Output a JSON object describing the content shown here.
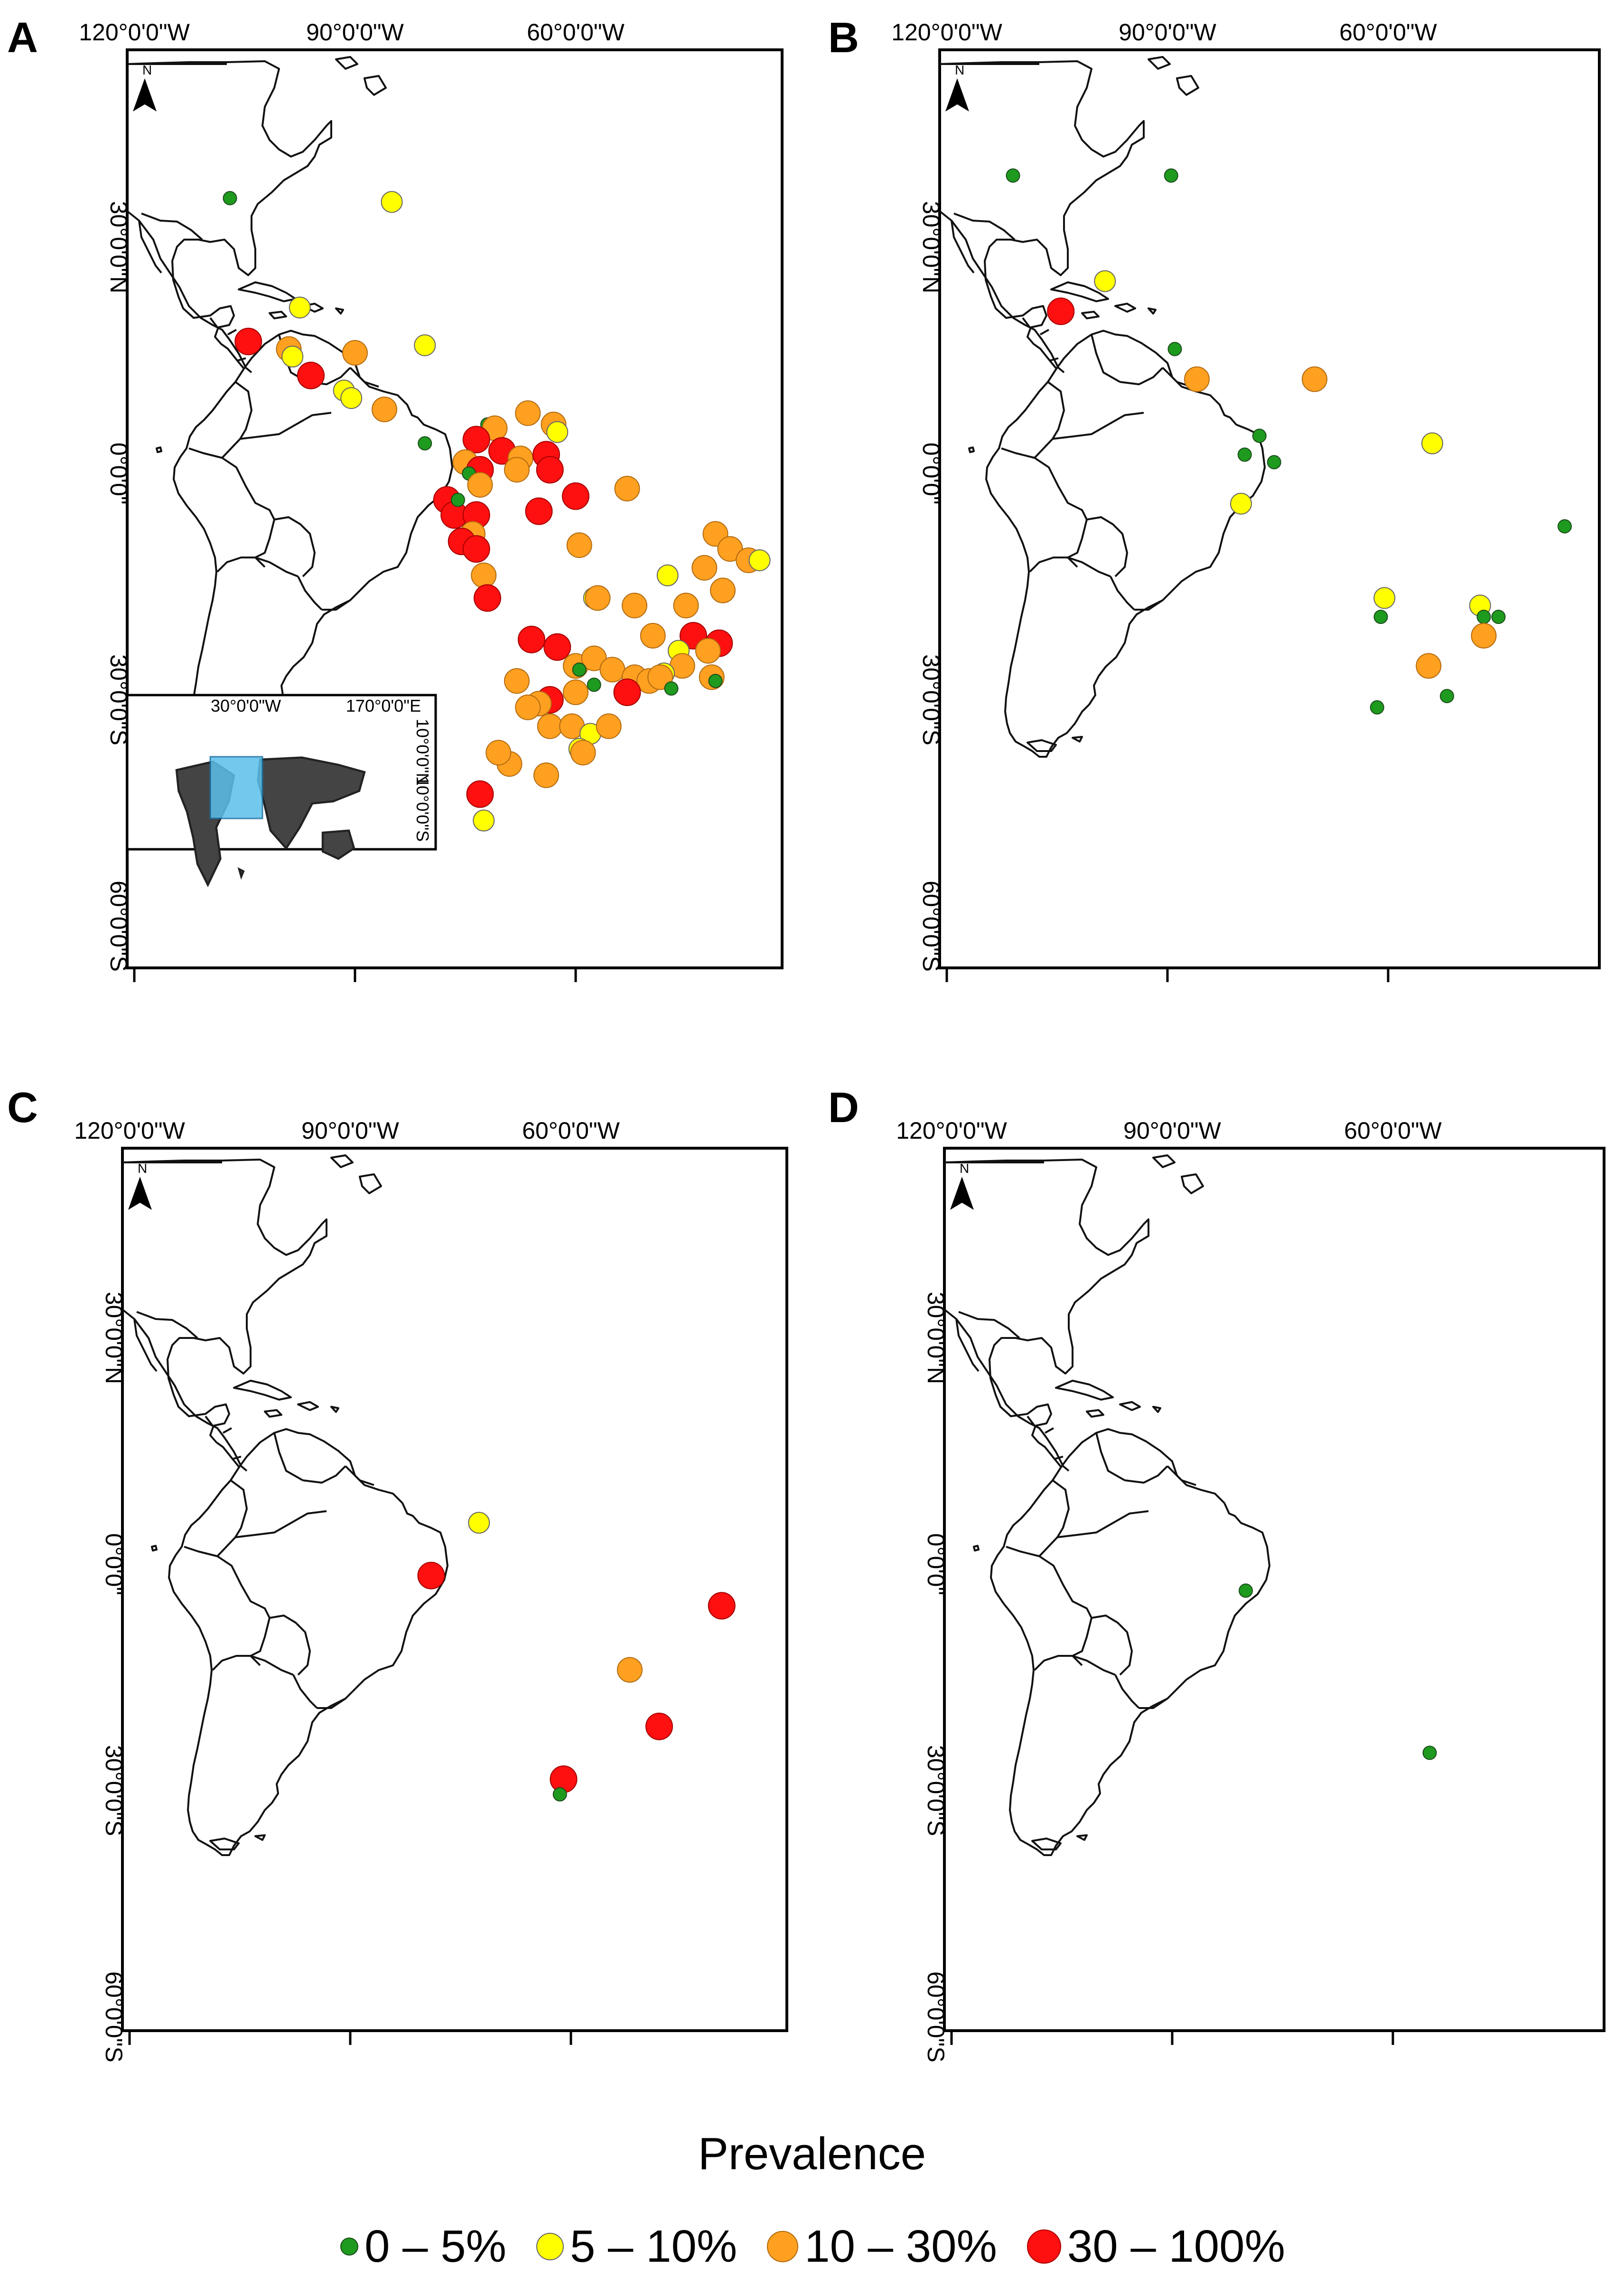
{
  "panels": [
    {
      "id": "A",
      "lon_labels": [
        "120°0'0\"W",
        "90°0'0\"W",
        "60°0'0\"W"
      ],
      "lat_labels": [
        "30°0'0\"N",
        "0°0'0\"",
        "30°0'0\"S",
        "60°0'0\"S"
      ],
      "north_label": "N",
      "inset": {
        "labels": [
          "30°0'0\"W",
          "170°0'0\"E",
          "10°0'0\"N",
          "10°0'0\"S"
        ]
      },
      "points": [
        {
          "lon": -107,
          "lat": 36.5,
          "cat": 0
        },
        {
          "lon": -85,
          "lat": 36,
          "cat": 1
        },
        {
          "lon": -97.5,
          "lat": 22,
          "cat": 1
        },
        {
          "lon": -80.5,
          "lat": 17,
          "cat": 1
        },
        {
          "lon": -104.5,
          "lat": 17.5,
          "cat": 3
        },
        {
          "lon": -99,
          "lat": 16.5,
          "cat": 2
        },
        {
          "lon": -98.5,
          "lat": 15.5,
          "cat": 1
        },
        {
          "lon": -96,
          "lat": 13,
          "cat": 3
        },
        {
          "lon": -90,
          "lat": 16,
          "cat": 2
        },
        {
          "lon": -91.5,
          "lat": 11,
          "cat": 1
        },
        {
          "lon": -90.5,
          "lat": 10,
          "cat": 1
        },
        {
          "lon": -86,
          "lat": 8.5,
          "cat": 2
        },
        {
          "lon": -80.5,
          "lat": 4,
          "cat": 0
        },
        {
          "lon": -72,
          "lat": 6.5,
          "cat": 0
        },
        {
          "lon": -71,
          "lat": 6,
          "cat": 2
        },
        {
          "lon": -66.5,
          "lat": 8,
          "cat": 2
        },
        {
          "lon": -63,
          "lat": 6.5,
          "cat": 2
        },
        {
          "lon": -62.5,
          "lat": 5.5,
          "cat": 1
        },
        {
          "lon": -73.5,
          "lat": 4.5,
          "cat": 3
        },
        {
          "lon": -70,
          "lat": 3,
          "cat": 3
        },
        {
          "lon": -67.5,
          "lat": 2,
          "cat": 2
        },
        {
          "lon": -64,
          "lat": 2.5,
          "cat": 3
        },
        {
          "lon": -75,
          "lat": 1.5,
          "cat": 2
        },
        {
          "lon": -73,
          "lat": 0.5,
          "cat": 3
        },
        {
          "lon": -74.5,
          "lat": 0,
          "cat": 0
        },
        {
          "lon": -68,
          "lat": 0.5,
          "cat": 2
        },
        {
          "lon": -63.5,
          "lat": 0.5,
          "cat": 3
        },
        {
          "lon": -73,
          "lat": -1.5,
          "cat": 2
        },
        {
          "lon": -77.5,
          "lat": -3.5,
          "cat": 3
        },
        {
          "lon": -76.5,
          "lat": -5.5,
          "cat": 3
        },
        {
          "lon": -76,
          "lat": -3.5,
          "cat": 0
        },
        {
          "lon": -73.5,
          "lat": -5.5,
          "cat": 3
        },
        {
          "lon": -74,
          "lat": -8,
          "cat": 2
        },
        {
          "lon": -75.5,
          "lat": -9,
          "cat": 3
        },
        {
          "lon": -73.5,
          "lat": -10,
          "cat": 3
        },
        {
          "lon": -72.5,
          "lat": -13.5,
          "cat": 2
        },
        {
          "lon": -72,
          "lat": -16.5,
          "cat": 3
        },
        {
          "lon": -65,
          "lat": -5,
          "cat": 3
        },
        {
          "lon": -60,
          "lat": -3,
          "cat": 3
        },
        {
          "lon": -53,
          "lat": -2,
          "cat": 2
        },
        {
          "lon": -59.5,
          "lat": -9.5,
          "cat": 2
        },
        {
          "lon": -41,
          "lat": -8,
          "cat": 2
        },
        {
          "lon": -39,
          "lat": -10,
          "cat": 2
        },
        {
          "lon": -47.5,
          "lat": -13.5,
          "cat": 1
        },
        {
          "lon": -42.5,
          "lat": -12.5,
          "cat": 2
        },
        {
          "lon": -36.5,
          "lat": -11.5,
          "cat": 2
        },
        {
          "lon": -35,
          "lat": -11.5,
          "cat": 1
        },
        {
          "lon": -40,
          "lat": -15.5,
          "cat": 2
        },
        {
          "lon": -57.5,
          "lat": -16.5,
          "cat": 1
        },
        {
          "lon": -57,
          "lat": -16.5,
          "cat": 2
        },
        {
          "lon": -52,
          "lat": -17.5,
          "cat": 2
        },
        {
          "lon": -45,
          "lat": -17.5,
          "cat": 2
        },
        {
          "lon": -49.5,
          "lat": -21.5,
          "cat": 2
        },
        {
          "lon": -44,
          "lat": -21.5,
          "cat": 3
        },
        {
          "lon": -40.5,
          "lat": -22.5,
          "cat": 3
        },
        {
          "lon": -42,
          "lat": -23.5,
          "cat": 2
        },
        {
          "lon": -46,
          "lat": -23.5,
          "cat": 1
        },
        {
          "lon": -45.5,
          "lat": -25.5,
          "cat": 2
        },
        {
          "lon": -48,
          "lat": -26.5,
          "cat": 1
        },
        {
          "lon": -41.5,
          "lat": -27,
          "cat": 2
        },
        {
          "lon": -41,
          "lat": -27.5,
          "cat": 0
        },
        {
          "lon": -66,
          "lat": -22,
          "cat": 3
        },
        {
          "lon": -62.5,
          "lat": -23,
          "cat": 3
        },
        {
          "lon": -68,
          "lat": -27.5,
          "cat": 2
        },
        {
          "lon": -60,
          "lat": -25.5,
          "cat": 2
        },
        {
          "lon": -57.5,
          "lat": -24.5,
          "cat": 2
        },
        {
          "lon": -55,
          "lat": -26,
          "cat": 2
        },
        {
          "lon": -52,
          "lat": -27,
          "cat": 2
        },
        {
          "lon": -50,
          "lat": -27.5,
          "cat": 2
        },
        {
          "lon": -48.5,
          "lat": -27,
          "cat": 2
        },
        {
          "lon": -47,
          "lat": -28.5,
          "cat": 0
        },
        {
          "lon": -53,
          "lat": -29,
          "cat": 3
        },
        {
          "lon": -57.5,
          "lat": -28,
          "cat": 0
        },
        {
          "lon": -59.5,
          "lat": -26,
          "cat": 0
        },
        {
          "lon": -60,
          "lat": -29,
          "cat": 2
        },
        {
          "lon": -63.5,
          "lat": -30,
          "cat": 3
        },
        {
          "lon": -65,
          "lat": -30.5,
          "cat": 2
        },
        {
          "lon": -66.5,
          "lat": -31,
          "cat": 2
        },
        {
          "lon": -63.5,
          "lat": -33.5,
          "cat": 2
        },
        {
          "lon": -60.5,
          "lat": -33.5,
          "cat": 2
        },
        {
          "lon": -58,
          "lat": -34.5,
          "cat": 1
        },
        {
          "lon": -55.5,
          "lat": -33.5,
          "cat": 2
        },
        {
          "lon": -59.5,
          "lat": -36.5,
          "cat": 1
        },
        {
          "lon": -59,
          "lat": -37,
          "cat": 2
        },
        {
          "lon": -69,
          "lat": -38.5,
          "cat": 2
        },
        {
          "lon": -70.5,
          "lat": -37,
          "cat": 2
        },
        {
          "lon": -64,
          "lat": -40,
          "cat": 2
        },
        {
          "lon": -73,
          "lat": -42.5,
          "cat": 3
        },
        {
          "lon": -72.5,
          "lat": -46,
          "cat": 1
        }
      ]
    },
    {
      "id": "B",
      "lon_labels": [
        "120°0'0\"W",
        "90°0'0\"W",
        "60°0'0\"W"
      ],
      "lat_labels": [
        "30°0'0\"N",
        "0°0'0\"",
        "30°0'0\"S",
        "60°0'0\"S"
      ],
      "north_label": "N",
      "points": [
        {
          "lon": -111,
          "lat": 39.5,
          "cat": 0
        },
        {
          "lon": -89.5,
          "lat": 39.5,
          "cat": 0
        },
        {
          "lon": -104.5,
          "lat": 21.5,
          "cat": 3
        },
        {
          "lon": -98.5,
          "lat": 25.5,
          "cat": 1
        },
        {
          "lon": -89,
          "lat": 16.5,
          "cat": 0
        },
        {
          "lon": -86,
          "lat": 12.5,
          "cat": 2
        },
        {
          "lon": -70,
          "lat": 12.5,
          "cat": 2
        },
        {
          "lon": -77.5,
          "lat": 5,
          "cat": 0
        },
        {
          "lon": -79.5,
          "lat": 2.5,
          "cat": 0
        },
        {
          "lon": -75.5,
          "lat": 1.5,
          "cat": 0
        },
        {
          "lon": -54,
          "lat": 4,
          "cat": 1
        },
        {
          "lon": -80,
          "lat": -4,
          "cat": 1
        },
        {
          "lon": -36,
          "lat": -7,
          "cat": 0
        },
        {
          "lon": -60.5,
          "lat": -16.5,
          "cat": 1
        },
        {
          "lon": -61,
          "lat": -19,
          "cat": 0
        },
        {
          "lon": -47.5,
          "lat": -17.5,
          "cat": 1
        },
        {
          "lon": -47,
          "lat": -19,
          "cat": 0
        },
        {
          "lon": -45,
          "lat": -19,
          "cat": 0
        },
        {
          "lon": -47,
          "lat": -21.5,
          "cat": 2
        },
        {
          "lon": -54.5,
          "lat": -25.5,
          "cat": 2
        },
        {
          "lon": -52,
          "lat": -29.5,
          "cat": 0
        },
        {
          "lon": -61.5,
          "lat": -31,
          "cat": 0
        }
      ]
    },
    {
      "id": "C",
      "lon_labels": [
        "120°0'0\"W",
        "90°0'0\"W",
        "60°0'0\"W"
      ],
      "lat_labels": [
        "30°0'0\"N",
        "0°0'0\"",
        "30°0'0\"S",
        "60°0'0\"S"
      ],
      "north_label": "N",
      "points": [
        {
          "lon": -72.5,
          "lat": 5.5,
          "cat": 1
        },
        {
          "lon": -79,
          "lat": -1.5,
          "cat": 3
        },
        {
          "lon": -39.5,
          "lat": -5.5,
          "cat": 3
        },
        {
          "lon": -52,
          "lat": -14,
          "cat": 2
        },
        {
          "lon": -48,
          "lat": -21.5,
          "cat": 3
        },
        {
          "lon": -61,
          "lat": -28.5,
          "cat": 3
        },
        {
          "lon": -61.5,
          "lat": -30.5,
          "cat": 0
        }
      ]
    },
    {
      "id": "D",
      "lon_labels": [
        "120°0'0\"W",
        "90°0'0\"W",
        "60°0'0\"W"
      ],
      "lat_labels": [
        "30°0'0\"N",
        "0°0'0\"",
        "30°0'0\"S",
        "60°0'0\"S"
      ],
      "north_label": "N",
      "points": [
        {
          "lon": -80,
          "lat": -3.5,
          "cat": 0
        },
        {
          "lon": -55,
          "lat": -25,
          "cat": 0
        }
      ]
    }
  ],
  "legend": {
    "title": "Prevalence",
    "items": [
      {
        "label": "0 – 5%",
        "color": "#1e9a1e"
      },
      {
        "label": "5 – 10%",
        "color": "#ffff00"
      },
      {
        "label": "10 – 30%",
        "color": "#ffa020"
      },
      {
        "label": "30 – 100%",
        "color": "#ff1010"
      }
    ]
  }
}
